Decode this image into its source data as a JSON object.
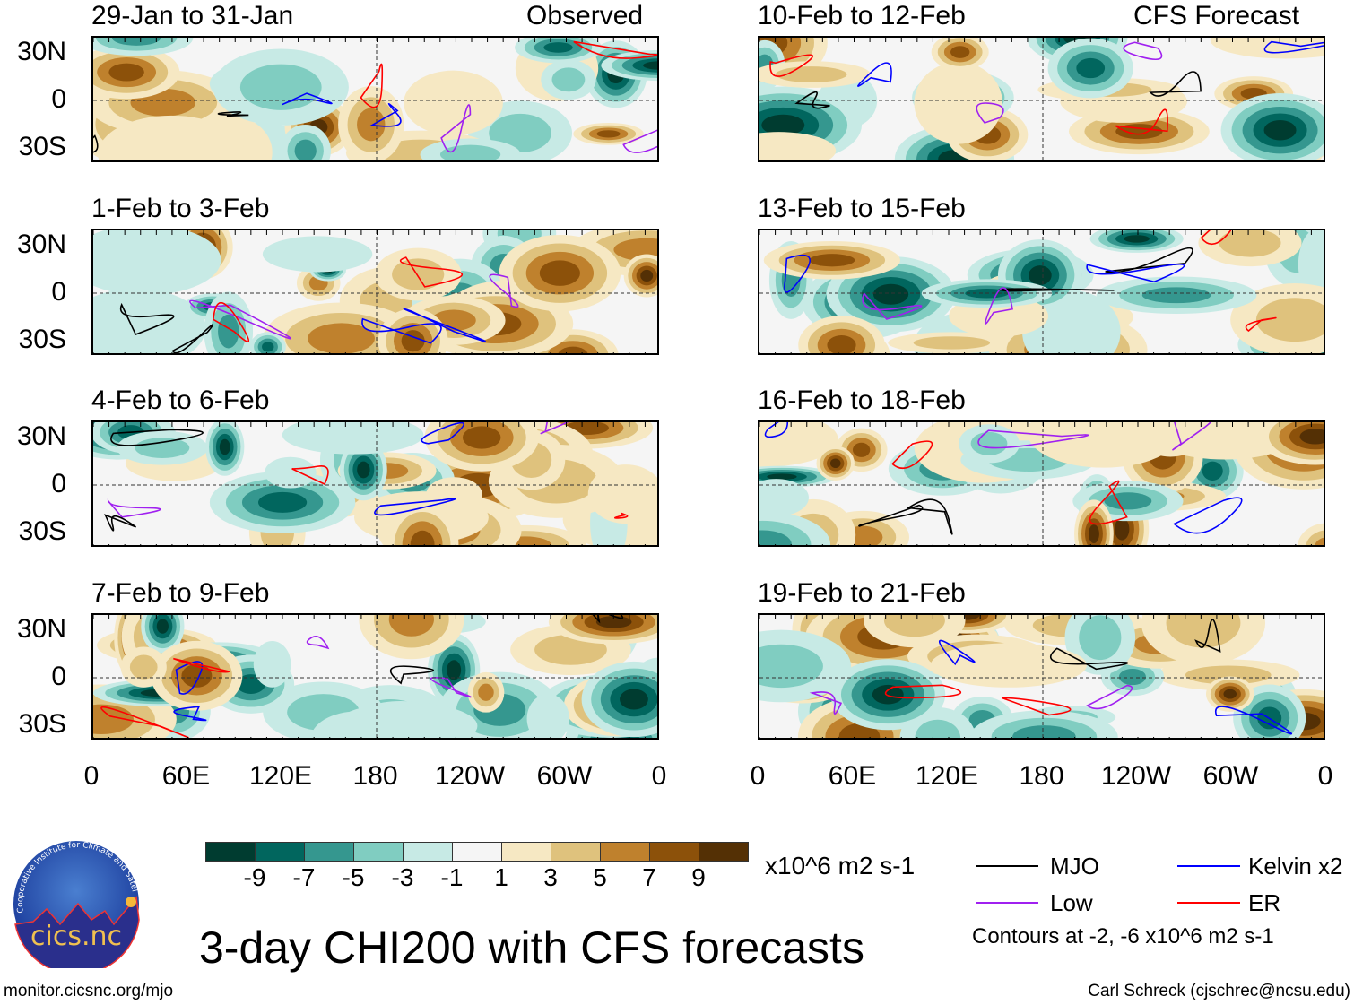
{
  "title": "3-day CHI200 with CFS forecasts",
  "headers": {
    "left": "Observed",
    "right": "CFS Forecast"
  },
  "panels": {
    "left": [
      "29-Jan to 31-Jan",
      "1-Feb to 3-Feb",
      "4-Feb to 6-Feb",
      "7-Feb to 9-Feb"
    ],
    "right": [
      "10-Feb to 12-Feb",
      "13-Feb to 15-Feb",
      "16-Feb to 18-Feb",
      "19-Feb to 21-Feb"
    ]
  },
  "lat_labels": [
    "30N",
    "0",
    "30S"
  ],
  "lon_labels": [
    "0",
    "60E",
    "120E",
    "180",
    "120W",
    "60W",
    "0"
  ],
  "colorbar": {
    "colors": [
      "#003c30",
      "#01665e",
      "#35978f",
      "#80cdc1",
      "#c7eae5",
      "#f5f5f5",
      "#f6e8c3",
      "#dfc27d",
      "#bf812d",
      "#8c510a",
      "#543005"
    ],
    "labels": [
      "-9",
      "-7",
      "-5",
      "-3",
      "-1",
      "1",
      "3",
      "5",
      "7",
      "9"
    ],
    "units": "x10^6 m2 s-1"
  },
  "legend": {
    "items": [
      {
        "label": "MJO",
        "color": "#000000"
      },
      {
        "label": "Kelvin x2",
        "color": "#0000ff"
      },
      {
        "label": "Low",
        "color": "#a020f0"
      },
      {
        "label": "ER",
        "color": "#ff0000"
      }
    ],
    "note": "Contours at -2, -6 x10^6 m2 s-1"
  },
  "logo": {
    "text": "cics.nc",
    "ring_text": "Cooperative Institute for Climate and Satellites"
  },
  "footer": {
    "url": "monitor.cicsnc.org/mjo",
    "credit": "Carl Schreck (cjschrec@ncsu.edu)"
  }
}
